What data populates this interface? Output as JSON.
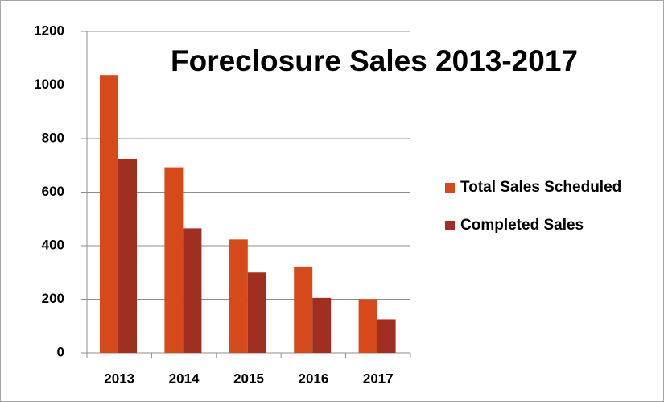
{
  "chart_data": {
    "type": "bar",
    "title": "Foreclosure Sales 2013-2017",
    "categories": [
      "2013",
      "2014",
      "2015",
      "2016",
      "2017"
    ],
    "series": [
      {
        "name": "Total Sales Scheduled",
        "color": "#d5491b",
        "values": [
          1037,
          693,
          423,
          322,
          200
        ]
      },
      {
        "name": "Completed Sales",
        "color": "#a02f22",
        "values": [
          725,
          465,
          300,
          205,
          125
        ]
      }
    ],
    "ylim": [
      0,
      1200
    ],
    "yticks": [
      0,
      200,
      400,
      600,
      800,
      1000,
      1200
    ],
    "grid": true,
    "legend": "right"
  }
}
